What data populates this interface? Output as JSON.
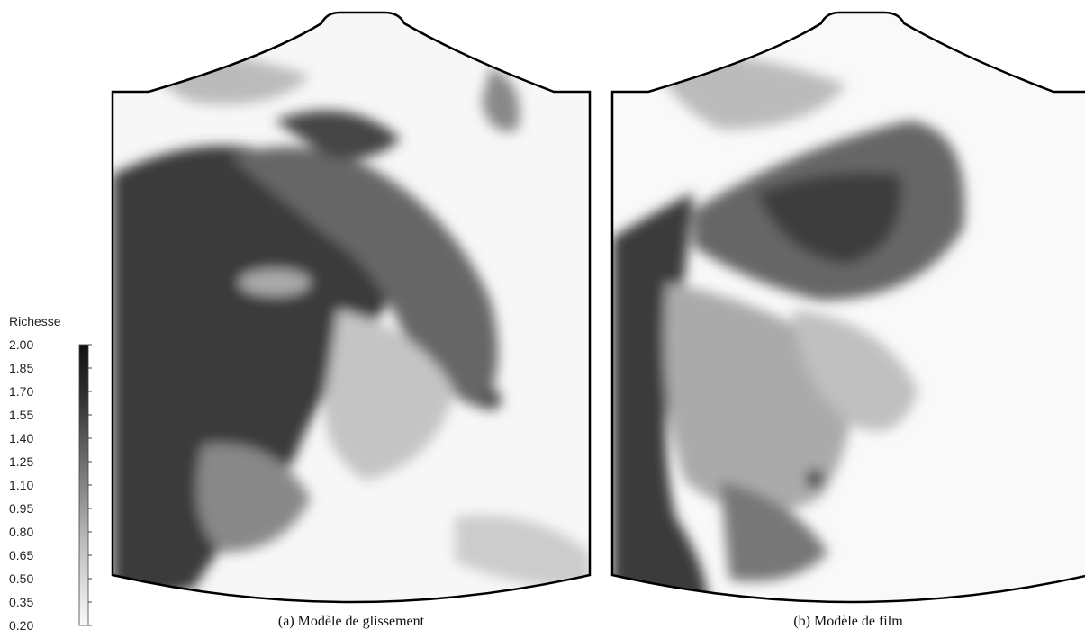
{
  "colorbar": {
    "title": "Richesse",
    "ticks": [
      {
        "value": 2.0,
        "label": "2.00"
      },
      {
        "value": 1.85,
        "label": "1.85"
      },
      {
        "value": 1.7,
        "label": "1.70"
      },
      {
        "value": 1.55,
        "label": "1.55"
      },
      {
        "value": 1.4,
        "label": "1.40"
      },
      {
        "value": 1.25,
        "label": "1.25"
      },
      {
        "value": 1.1,
        "label": "1.10"
      },
      {
        "value": 0.95,
        "label": "0.95"
      },
      {
        "value": 0.8,
        "label": "0.80"
      },
      {
        "value": 0.65,
        "label": "0.65"
      },
      {
        "value": 0.5,
        "label": "0.50"
      },
      {
        "value": 0.35,
        "label": "0.35"
      },
      {
        "value": 0.2,
        "label": "0.20"
      }
    ]
  },
  "panels": [
    {
      "caption": "(a) Modèle de glissement"
    },
    {
      "caption": "(b) Modèle de film"
    }
  ]
}
